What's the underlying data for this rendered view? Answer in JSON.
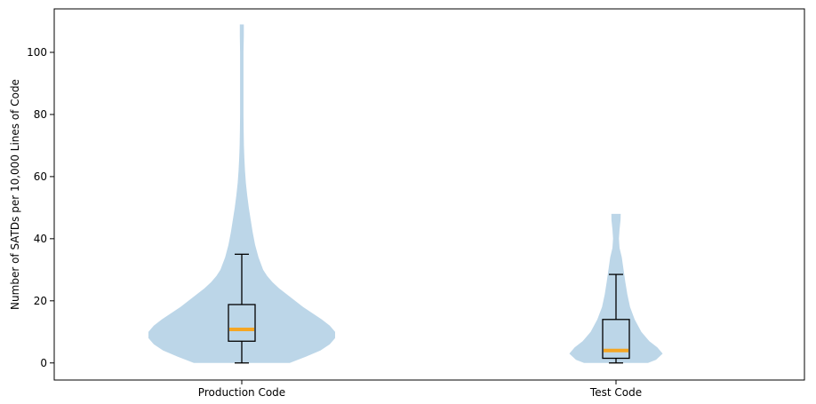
{
  "chart_data": {
    "type": "violin",
    "title": "",
    "xlabel": "",
    "ylabel": "Number of SATDs per 10,000 Lines of Code",
    "ylim": [
      -5.5,
      114
    ],
    "yticks": [
      0,
      20,
      40,
      60,
      80,
      100
    ],
    "grid": false,
    "categories": [
      "Production Code",
      "Test Code"
    ],
    "series": [
      {
        "category": "Production Code",
        "min": 0,
        "q1": 7,
        "median": 10.8,
        "q3": 18.8,
        "whisker_high": 35,
        "max": 109,
        "density": [
          [
            0,
            0.36
          ],
          [
            2,
            0.48
          ],
          [
            4,
            0.59
          ],
          [
            6,
            0.66
          ],
          [
            8,
            0.7
          ],
          [
            10,
            0.7
          ],
          [
            12,
            0.66
          ],
          [
            14,
            0.6
          ],
          [
            16,
            0.53
          ],
          [
            18,
            0.46
          ],
          [
            20,
            0.4
          ],
          [
            22,
            0.34
          ],
          [
            24,
            0.28
          ],
          [
            26,
            0.23
          ],
          [
            28,
            0.19
          ],
          [
            30,
            0.16
          ],
          [
            34,
            0.125
          ],
          [
            38,
            0.1
          ],
          [
            42,
            0.082
          ],
          [
            46,
            0.067
          ],
          [
            50,
            0.053
          ],
          [
            54,
            0.041
          ],
          [
            58,
            0.031
          ],
          [
            62,
            0.024
          ],
          [
            66,
            0.019
          ],
          [
            70,
            0.016
          ],
          [
            75,
            0.014
          ],
          [
            80,
            0.013
          ],
          [
            90,
            0.013
          ],
          [
            100,
            0.013
          ],
          [
            105,
            0.015
          ],
          [
            109,
            0.015
          ]
        ]
      },
      {
        "category": "Test Code",
        "min": 0,
        "q1": 1.5,
        "median": 4,
        "q3": 14,
        "whisker_high": 28.5,
        "max": 48,
        "density": [
          [
            0,
            0.24
          ],
          [
            1,
            0.3
          ],
          [
            3,
            0.35
          ],
          [
            5,
            0.31
          ],
          [
            7,
            0.25
          ],
          [
            10,
            0.19
          ],
          [
            14,
            0.14
          ],
          [
            18,
            0.105
          ],
          [
            22,
            0.085
          ],
          [
            26,
            0.07
          ],
          [
            30,
            0.057
          ],
          [
            34,
            0.043
          ],
          [
            37,
            0.027
          ],
          [
            40,
            0.022
          ],
          [
            43,
            0.027
          ],
          [
            46,
            0.034
          ],
          [
            48,
            0.035
          ]
        ]
      }
    ],
    "colors": {
      "violin_fill": "#bcd6e8",
      "median": "#f5a623",
      "box": "#000000"
    }
  }
}
